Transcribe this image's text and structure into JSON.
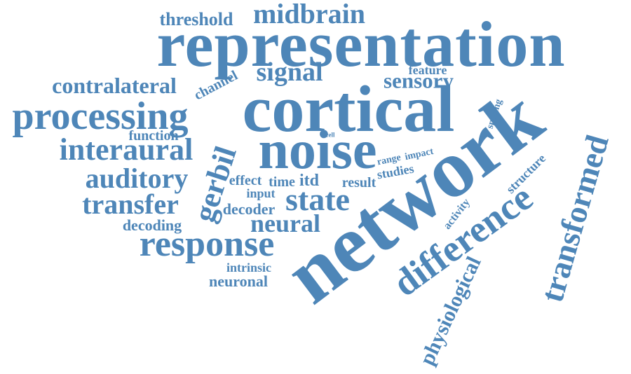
{
  "wordcloud": {
    "color": "#4e86b8",
    "words": {
      "representation": "representation",
      "midbrain": "midbrain",
      "threshold": "threshold",
      "cortical": "cortical",
      "network": "network",
      "noise": "noise",
      "processing": "processing",
      "signal": "signal",
      "contralateral": "contralateral",
      "channel": "channel",
      "sensory": "sensory",
      "feature": "feature",
      "interaural": "interaural",
      "function": "function",
      "gerbil": "gerbil",
      "auditory": "auditory",
      "transfer": "transfer",
      "decoding": "decoding",
      "response": "response",
      "state": "state",
      "neural": "neural",
      "decoder": "decoder",
      "effect": "effect",
      "time": "time",
      "itd": "itd",
      "input": "input",
      "result": "result",
      "studies": "studies",
      "range": "range",
      "impact": "impact",
      "cell": "cell",
      "spiking": "spiking",
      "difference": "difference",
      "transformed": "transformed",
      "structure": "structure",
      "activity": "activity",
      "physiological": "physiological",
      "intrinsic": "intrinsic",
      "neuronal": "neuronal"
    }
  }
}
